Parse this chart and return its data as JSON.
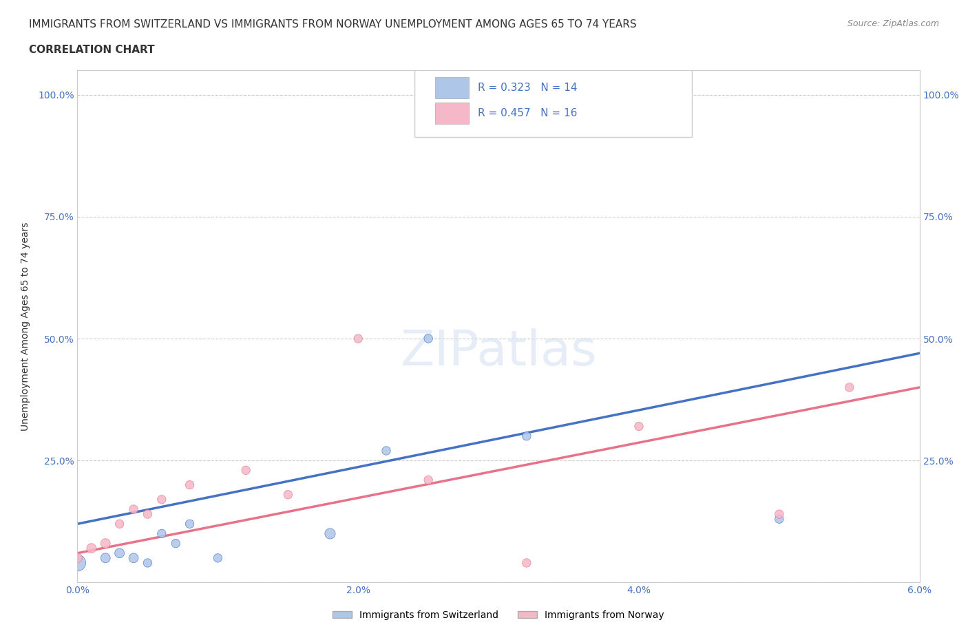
{
  "title_line1": "IMMIGRANTS FROM SWITZERLAND VS IMMIGRANTS FROM NORWAY UNEMPLOYMENT AMONG AGES 65 TO 74 YEARS",
  "title_line2": "CORRELATION CHART",
  "source": "Source: ZipAtlas.com",
  "ylabel": "Unemployment Among Ages 65 to 74 years",
  "watermark": "ZIPatlas",
  "xlim": [
    0.0,
    0.06
  ],
  "ylim": [
    0.0,
    1.05
  ],
  "xticks": [
    0.0,
    0.01,
    0.02,
    0.03,
    0.04,
    0.05,
    0.06
  ],
  "xticklabels": [
    "0.0%",
    "",
    "2.0%",
    "",
    "4.0%",
    "",
    "6.0%"
  ],
  "yticks": [
    0.0,
    0.25,
    0.5,
    0.75,
    1.0
  ],
  "yticklabels": [
    "",
    "25.0%",
    "50.0%",
    "75.0%",
    "100.0%"
  ],
  "grid_color": "#cccccc",
  "background_color": "#ffffff",
  "swiss_color": "#aec6e8",
  "norway_color": "#f4b8c8",
  "swiss_line_color": "#4472c4",
  "norway_line_color": "#e8728a",
  "swiss_R": 0.323,
  "swiss_N": 14,
  "norway_R": 0.457,
  "norway_N": 16,
  "swiss_scatter_x": [
    0.0,
    0.002,
    0.003,
    0.004,
    0.005,
    0.006,
    0.007,
    0.008,
    0.01,
    0.018,
    0.022,
    0.025,
    0.032,
    0.05
  ],
  "swiss_scatter_y": [
    0.04,
    0.05,
    0.06,
    0.05,
    0.04,
    0.1,
    0.08,
    0.12,
    0.05,
    0.1,
    0.27,
    0.5,
    0.3,
    0.13
  ],
  "swiss_scatter_size": [
    300,
    100,
    100,
    100,
    80,
    80,
    80,
    80,
    80,
    120,
    80,
    80,
    80,
    80
  ],
  "norway_scatter_x": [
    0.0,
    0.001,
    0.002,
    0.003,
    0.004,
    0.005,
    0.006,
    0.008,
    0.012,
    0.015,
    0.02,
    0.025,
    0.032,
    0.04,
    0.05,
    0.055
  ],
  "norway_scatter_y": [
    0.05,
    0.07,
    0.08,
    0.12,
    0.15,
    0.14,
    0.17,
    0.2,
    0.23,
    0.18,
    0.5,
    0.21,
    0.04,
    0.32,
    0.14,
    0.4
  ],
  "norway_scatter_size": [
    100,
    100,
    100,
    80,
    80,
    80,
    80,
    80,
    80,
    80,
    80,
    80,
    80,
    80,
    80,
    80
  ],
  "swiss_trendline_x": [
    0.0,
    0.06
  ],
  "swiss_trendline_y": [
    0.12,
    0.47
  ],
  "norway_trendline_x": [
    0.0,
    0.06
  ],
  "norway_trendline_y": [
    0.06,
    0.4
  ],
  "title_color": "#333333",
  "tick_color": "#4472c4",
  "legend_label_swiss": "Immigrants from Switzerland",
  "legend_label_norway": "Immigrants from Norway"
}
